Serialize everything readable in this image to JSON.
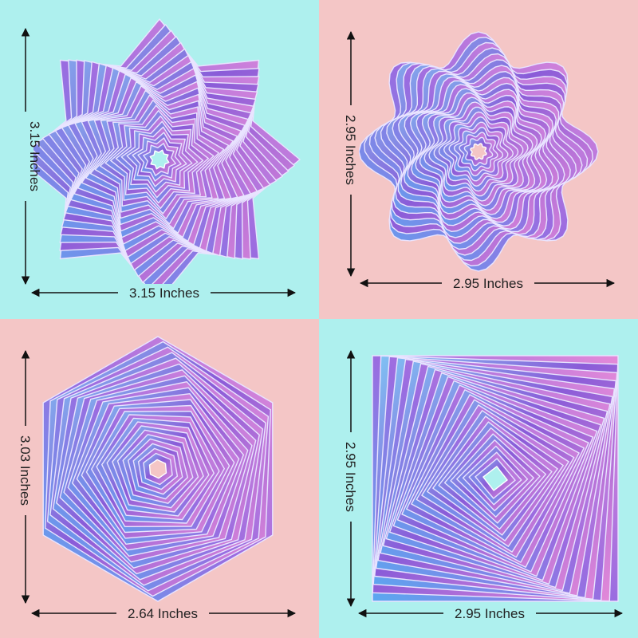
{
  "colors": {
    "cyan": "#aef0ee",
    "pink": "#f4c6c6",
    "shape_blue": "#5aa8f0",
    "shape_purple": "#8a5cd8",
    "shape_pink": "#e58ad8"
  },
  "panels": [
    {
      "shape": "eight-point-star",
      "background": "cyan",
      "height_label": "3.15 Inches",
      "width_label": "3.15 Inches"
    },
    {
      "shape": "flower",
      "background": "pink",
      "height_label": "2.95 Inches",
      "width_label": "2.95 Inches"
    },
    {
      "shape": "hexagon",
      "background": "pink",
      "height_label": "3.03 Inches",
      "width_label": "2.64 Inches"
    },
    {
      "shape": "square",
      "background": "cyan",
      "height_label": "2.95 Inches",
      "width_label": "2.95 Inches"
    }
  ]
}
